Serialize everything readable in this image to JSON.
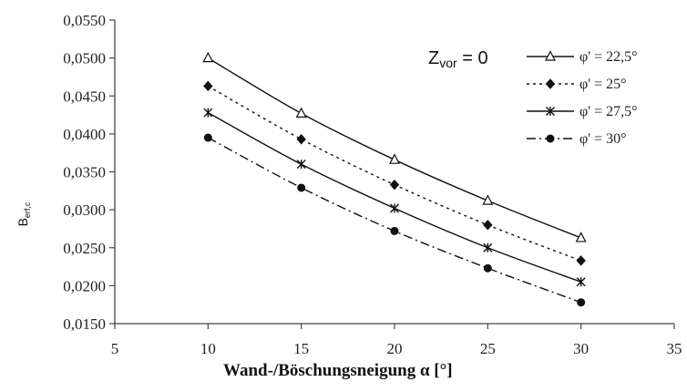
{
  "chart_data": {
    "type": "line",
    "xlabel": "Wand-/Böschungsneigung α [°]",
    "ylabel": {
      "main": "B",
      "sub": "erf,c"
    },
    "annotation": {
      "main": "Z",
      "sub": "vor",
      "rest": " = 0"
    },
    "xlim": [
      5,
      35
    ],
    "ylim": [
      0.015,
      0.055
    ],
    "xticks": [
      5,
      10,
      15,
      20,
      25,
      30,
      35
    ],
    "yticks": [
      0.015,
      0.02,
      0.025,
      0.03,
      0.035,
      0.04,
      0.045,
      0.05,
      0.055
    ],
    "ytick_labels": [
      "0,0150",
      "0,0200",
      "0,0250",
      "0,0300",
      "0,0350",
      "0,0400",
      "0,0450",
      "0,0500",
      "0,0550"
    ],
    "x": [
      10,
      15,
      20,
      25,
      30
    ],
    "grid": false,
    "legend_position": "top-right",
    "series": [
      {
        "name": "φ' = 22,5°",
        "values": [
          0.05,
          0.0427,
          0.0366,
          0.0312,
          0.0263
        ],
        "marker": "triangle-open",
        "dash": "solid"
      },
      {
        "name": "φ' = 25°",
        "values": [
          0.0463,
          0.0393,
          0.0333,
          0.028,
          0.0233
        ],
        "marker": "diamond",
        "dash": "dotted"
      },
      {
        "name": "φ' = 27,5°",
        "values": [
          0.0428,
          0.036,
          0.0302,
          0.025,
          0.0205
        ],
        "marker": "star",
        "dash": "solid"
      },
      {
        "name": "φ' = 30°",
        "values": [
          0.0395,
          0.0329,
          0.0272,
          0.0223,
          0.0178
        ],
        "marker": "circle",
        "dash": "dashdot"
      }
    ]
  }
}
